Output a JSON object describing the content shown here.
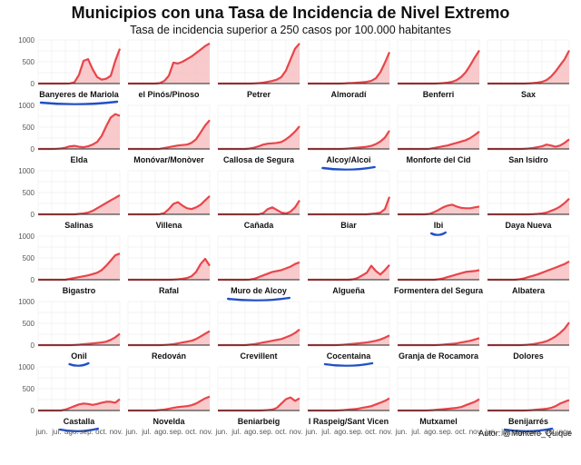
{
  "header": {
    "title": "Municipios con una Tasa de Incidencia de Nivel Extremo",
    "subtitle": "Tasa de incidencia superior a 250 casos por 100.000 habitantes"
  },
  "footer": {
    "credit": "Autor: @Montero_Quique"
  },
  "colors": {
    "line": "#e8454a",
    "fill": "#f7b3b5",
    "highlight": "#1f4fc8"
  },
  "chart_data": {
    "type": "area",
    "facet_layout": {
      "rows": 6,
      "cols": 6
    },
    "ylim": [
      0,
      1000
    ],
    "y_ticks": [
      "0",
      "500",
      "1000"
    ],
    "x_ticks": [
      "jun.",
      "jul.",
      "ago.",
      "sep.",
      "oct.",
      "nov."
    ],
    "x_range": [
      "jun.",
      "nov."
    ],
    "grid": true,
    "panels": [
      {
        "name": "Banyeres de Mariola",
        "highlighted": true,
        "values": [
          0,
          0,
          0,
          0,
          0,
          0,
          0,
          5,
          30,
          200,
          520,
          560,
          330,
          150,
          90,
          110,
          180,
          520,
          800
        ]
      },
      {
        "name": "el Pinós/Pinoso",
        "highlighted": false,
        "values": [
          0,
          0,
          0,
          0,
          0,
          0,
          0,
          10,
          60,
          180,
          480,
          460,
          500,
          560,
          620,
          700,
          780,
          860,
          920
        ]
      },
      {
        "name": "Petrer",
        "highlighted": false,
        "values": [
          0,
          0,
          0,
          0,
          0,
          0,
          0,
          0,
          5,
          10,
          20,
          40,
          60,
          90,
          150,
          300,
          550,
          800,
          920
        ]
      },
      {
        "name": "Almoradí",
        "highlighted": false,
        "values": [
          0,
          0,
          0,
          0,
          0,
          0,
          0,
          0,
          5,
          10,
          15,
          20,
          30,
          40,
          60,
          120,
          260,
          480,
          720
        ]
      },
      {
        "name": "Benferri",
        "highlighted": false,
        "values": [
          0,
          0,
          0,
          0,
          0,
          0,
          0,
          0,
          0,
          5,
          10,
          20,
          40,
          80,
          150,
          260,
          420,
          600,
          760
        ]
      },
      {
        "name": "Sax",
        "highlighted": false,
        "values": [
          0,
          0,
          0,
          0,
          0,
          0,
          0,
          0,
          0,
          5,
          10,
          20,
          40,
          80,
          160,
          280,
          420,
          560,
          760
        ]
      },
      {
        "name": "Elda",
        "highlighted": false,
        "values": [
          0,
          0,
          0,
          0,
          5,
          10,
          30,
          60,
          70,
          50,
          40,
          60,
          100,
          160,
          300,
          520,
          720,
          800,
          760
        ]
      },
      {
        "name": "Monóvar/Monòver",
        "highlighted": false,
        "values": [
          0,
          0,
          0,
          0,
          0,
          0,
          0,
          5,
          20,
          40,
          60,
          80,
          90,
          100,
          140,
          220,
          380,
          540,
          660
        ]
      },
      {
        "name": "Callosa de Segura",
        "highlighted": false,
        "values": [
          0,
          0,
          0,
          0,
          0,
          0,
          0,
          10,
          30,
          60,
          100,
          120,
          130,
          140,
          160,
          220,
          300,
          400,
          520
        ]
      },
      {
        "name": "Alcoy/Alcoi",
        "highlighted": true,
        "values": [
          0,
          0,
          0,
          0,
          0,
          0,
          0,
          0,
          5,
          10,
          20,
          30,
          40,
          50,
          70,
          110,
          170,
          260,
          420
        ]
      },
      {
        "name": "Monforte del Cid",
        "highlighted": false,
        "values": [
          0,
          0,
          0,
          0,
          0,
          0,
          0,
          5,
          20,
          40,
          60,
          80,
          110,
          140,
          170,
          200,
          250,
          320,
          400
        ]
      },
      {
        "name": "San Isidro",
        "highlighted": false,
        "values": [
          0,
          0,
          0,
          0,
          0,
          0,
          0,
          0,
          5,
          10,
          20,
          40,
          60,
          100,
          80,
          50,
          80,
          140,
          220
        ]
      },
      {
        "name": "Salinas",
        "highlighted": false,
        "values": [
          0,
          0,
          0,
          0,
          0,
          0,
          0,
          0,
          0,
          10,
          20,
          40,
          80,
          140,
          200,
          260,
          320,
          380,
          440
        ]
      },
      {
        "name": "Villena",
        "highlighted": false,
        "values": [
          0,
          0,
          0,
          0,
          0,
          0,
          0,
          5,
          30,
          120,
          240,
          280,
          200,
          140,
          120,
          160,
          220,
          320,
          420
        ]
      },
      {
        "name": "Cañada",
        "highlighted": false,
        "values": [
          0,
          0,
          0,
          0,
          0,
          0,
          0,
          0,
          0,
          0,
          30,
          120,
          160,
          100,
          40,
          20,
          60,
          160,
          320
        ]
      },
      {
        "name": "Biar",
        "highlighted": false,
        "values": [
          0,
          0,
          0,
          0,
          0,
          0,
          0,
          0,
          0,
          0,
          0,
          0,
          0,
          0,
          10,
          20,
          40,
          120,
          400
        ]
      },
      {
        "name": "Ibi",
        "highlighted": true,
        "values": [
          0,
          0,
          0,
          0,
          0,
          0,
          0,
          10,
          50,
          100,
          160,
          200,
          220,
          180,
          150,
          140,
          140,
          160,
          180
        ]
      },
      {
        "name": "Daya Nueva",
        "highlighted": false,
        "values": [
          0,
          0,
          0,
          0,
          0,
          0,
          0,
          0,
          0,
          0,
          5,
          10,
          20,
          40,
          80,
          120,
          180,
          260,
          360
        ]
      },
      {
        "name": "Bigastro",
        "highlighted": false,
        "values": [
          0,
          0,
          0,
          0,
          0,
          0,
          0,
          20,
          40,
          60,
          80,
          100,
          130,
          160,
          220,
          320,
          440,
          560,
          600
        ]
      },
      {
        "name": "Rafal",
        "highlighted": false,
        "values": [
          0,
          0,
          0,
          0,
          0,
          0,
          0,
          0,
          0,
          0,
          5,
          10,
          20,
          40,
          80,
          180,
          360,
          480,
          320
        ]
      },
      {
        "name": "Muro de Alcoy",
        "highlighted": true,
        "values": [
          0,
          0,
          0,
          0,
          0,
          0,
          0,
          5,
          20,
          60,
          100,
          140,
          180,
          200,
          220,
          260,
          300,
          360,
          400
        ]
      },
      {
        "name": "Algueña",
        "highlighted": false,
        "values": [
          0,
          0,
          0,
          0,
          0,
          0,
          0,
          0,
          0,
          0,
          10,
          40,
          100,
          160,
          320,
          200,
          120,
          220,
          340
        ]
      },
      {
        "name": "Formentera del Segura",
        "highlighted": false,
        "values": [
          0,
          0,
          0,
          0,
          0,
          0,
          0,
          0,
          0,
          10,
          30,
          60,
          90,
          120,
          150,
          180,
          190,
          200,
          220
        ]
      },
      {
        "name": "Albatera",
        "highlighted": false,
        "values": [
          0,
          0,
          0,
          0,
          0,
          0,
          0,
          10,
          30,
          60,
          90,
          120,
          160,
          200,
          240,
          280,
          320,
          360,
          420
        ]
      },
      {
        "name": "Onil",
        "highlighted": true,
        "values": [
          0,
          0,
          0,
          0,
          0,
          0,
          0,
          0,
          5,
          10,
          20,
          30,
          40,
          50,
          60,
          80,
          120,
          180,
          260
        ]
      },
      {
        "name": "Redován",
        "highlighted": false,
        "values": [
          0,
          0,
          0,
          0,
          0,
          0,
          0,
          0,
          5,
          10,
          20,
          40,
          60,
          80,
          100,
          140,
          200,
          260,
          320
        ]
      },
      {
        "name": "Crevillent",
        "highlighted": false,
        "values": [
          0,
          0,
          0,
          0,
          0,
          0,
          0,
          10,
          20,
          40,
          60,
          80,
          100,
          120,
          140,
          180,
          220,
          280,
          360
        ]
      },
      {
        "name": "Cocentaina",
        "highlighted": true,
        "values": [
          0,
          0,
          0,
          0,
          0,
          0,
          0,
          5,
          10,
          20,
          30,
          40,
          50,
          60,
          80,
          100,
          130,
          170,
          220
        ]
      },
      {
        "name": "Granja de Rocamora",
        "highlighted": false,
        "values": [
          0,
          0,
          0,
          0,
          0,
          0,
          0,
          0,
          0,
          5,
          10,
          20,
          30,
          40,
          60,
          80,
          100,
          130,
          160
        ]
      },
      {
        "name": "Dolores",
        "highlighted": false,
        "values": [
          0,
          0,
          0,
          0,
          0,
          0,
          0,
          0,
          5,
          10,
          20,
          40,
          60,
          90,
          140,
          200,
          280,
          380,
          520
        ]
      },
      {
        "name": "Castalla",
        "highlighted": true,
        "values": [
          0,
          0,
          0,
          0,
          0,
          0,
          20,
          60,
          100,
          140,
          160,
          150,
          130,
          150,
          180,
          200,
          200,
          180,
          260
        ]
      },
      {
        "name": "Novelda",
        "highlighted": false,
        "values": [
          0,
          0,
          0,
          0,
          0,
          0,
          0,
          10,
          20,
          40,
          60,
          80,
          90,
          100,
          120,
          160,
          220,
          280,
          320
        ]
      },
      {
        "name": "Beniarbeig",
        "highlighted": false,
        "values": [
          0,
          0,
          0,
          0,
          0,
          0,
          0,
          0,
          0,
          0,
          5,
          10,
          20,
          60,
          160,
          260,
          300,
          220,
          280
        ]
      },
      {
        "name": "l Raspeig/Sant Vicen",
        "highlighted": false,
        "values": [
          0,
          0,
          0,
          0,
          0,
          0,
          0,
          5,
          10,
          20,
          30,
          40,
          60,
          80,
          100,
          140,
          180,
          220,
          280
        ]
      },
      {
        "name": "Mutxamel",
        "highlighted": false,
        "values": [
          0,
          0,
          0,
          0,
          0,
          0,
          0,
          5,
          10,
          20,
          30,
          40,
          50,
          60,
          80,
          120,
          160,
          200,
          260
        ]
      },
      {
        "name": "Benijarrés",
        "highlighted": true,
        "values": [
          0,
          0,
          0,
          0,
          0,
          0,
          0,
          0,
          0,
          5,
          10,
          20,
          30,
          40,
          60,
          100,
          160,
          200,
          240
        ]
      }
    ]
  }
}
